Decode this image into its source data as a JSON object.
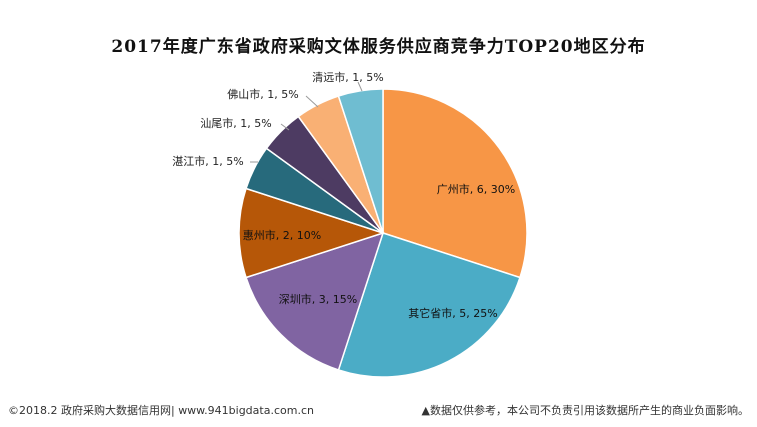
{
  "chart_data": {
    "type": "pie",
    "title": "2017年度广东省政府采购文体服务供应商竞争力TOP20地区分布",
    "slices": [
      {
        "label": "广州市, 6, 30%",
        "name": "广州市",
        "value": 6,
        "percent": 30,
        "color": "#F79646"
      },
      {
        "label": "其它省市, 5, 25%",
        "name": "其它省市",
        "value": 5,
        "percent": 25,
        "color": "#4BACC6"
      },
      {
        "label": "深圳市, 3, 15%",
        "name": "深圳市",
        "value": 3,
        "percent": 15,
        "color": "#8064A2"
      },
      {
        "label": "惠州市, 2, 10%",
        "name": "惠州市",
        "value": 2,
        "percent": 10,
        "color": "#B65708"
      },
      {
        "label": "湛江市, 1, 5%",
        "name": "湛江市",
        "value": 1,
        "percent": 5,
        "color": "#276A7C"
      },
      {
        "label": "汕尾市, 1, 5%",
        "name": "汕尾市",
        "value": 1,
        "percent": 5,
        "color": "#4D3B62"
      },
      {
        "label": "佛山市, 1, 5%",
        "name": "佛山市",
        "value": 1,
        "percent": 5,
        "color": "#F9B074"
      },
      {
        "label": "清远市, 1, 5%",
        "name": "清远市",
        "value": 1,
        "percent": 5,
        "color": "#6FBDD1"
      }
    ]
  },
  "footer": {
    "left": "©2018.2 政府采购大数据信用网| www.941bigdata.com.cn",
    "right": "▲数据仅供参考，本公司不负责引用该数据所产生的商业负面影响。"
  }
}
